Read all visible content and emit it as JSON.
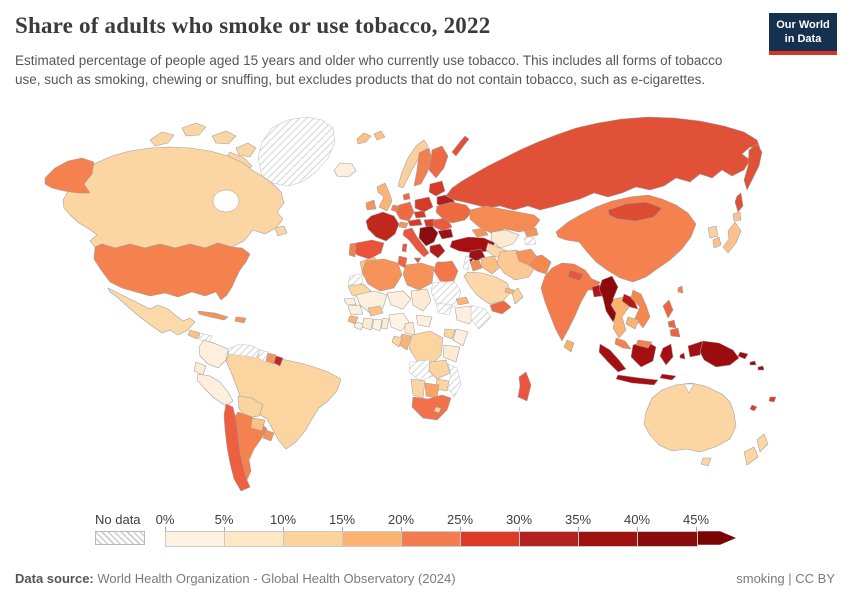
{
  "header": {
    "title": "Share of adults who smoke or use tobacco, 2022",
    "subtitle": "Estimated percentage of people aged 15 years and older who currently use tobacco. This includes all forms of tobacco use, such as smoking, chewing or snuffing, but excludes products that do not contain tobacco, such as e-cigarettes.",
    "logo": {
      "line1": "Our World",
      "line2": "in Data",
      "bg_color": "#16304f",
      "accent_color": "#d63429"
    }
  },
  "legend": {
    "no_data_label": "No data",
    "ticks": [
      "0%",
      "5%",
      "10%",
      "15%",
      "20%",
      "25%",
      "30%",
      "35%",
      "40%",
      "45%"
    ],
    "segment_colors": [
      "#fdf1e1",
      "#fde7c4",
      "#fbd49d",
      "#fcb371",
      "#f47d50",
      "#dc3b27",
      "#b42121",
      "#9e1212",
      "#8a0d0d"
    ],
    "arrow_color": "#7a0404"
  },
  "footer": {
    "source_label": "Data source:",
    "source_text": "World Health Organization - Global Health Observatory (2024)",
    "right_text": "smoking | CC BY"
  },
  "chart_data": {
    "type": "heatmap",
    "subtype": "world-choropleth",
    "title": "Share of adults who smoke or use tobacco, 2022",
    "unit": "% of people aged 15+ using tobacco",
    "scale_ticks_percent": [
      0,
      5,
      10,
      15,
      20,
      25,
      30,
      35,
      40,
      45
    ],
    "legend_note": "arrow segment = 45%+, hatched = No data",
    "regions": {
      "greenland": {
        "v": "No data",
        "c": "no-data"
      },
      "canada": {
        "v": "10-15%",
        "c": "#fbd6a3"
      },
      "usa": {
        "v": "20-25%",
        "c": "#f5814f"
      },
      "mexico": {
        "v": "10-15%",
        "c": "#fcd9a8"
      },
      "guatemala": {
        "v": "15-20%",
        "c": "#fcc183"
      },
      "honduras": {
        "v": "No data",
        "c": "no-data"
      },
      "nicaragua": {
        "v": "10-15%",
        "c": "#fbd09a"
      },
      "costa-rica-panama": {
        "v": "5-10%",
        "c": "#fdeedd"
      },
      "cuba": {
        "v": "20-25%",
        "c": "#f5935f"
      },
      "hispaniola": {
        "v": "20-25%",
        "c": "#f5935f"
      },
      "colombia": {
        "v": "5-10%",
        "c": "#fdeedd"
      },
      "venezuela": {
        "v": "No data",
        "c": "no-data"
      },
      "guyana": {
        "v": "No data",
        "c": "no-data"
      },
      "suriname": {
        "v": "20-25%",
        "c": "#f5935f"
      },
      "french-guiana": {
        "v": "30-35%",
        "c": "#c0281e"
      },
      "ecuador": {
        "v": "5-10%",
        "c": "#fdead2"
      },
      "peru": {
        "v": "5-10%",
        "c": "#fdeedd"
      },
      "brazil": {
        "v": "10-15%",
        "c": "#fbd49f"
      },
      "bolivia": {
        "v": "10-15%",
        "c": "#fbd49f"
      },
      "paraguay": {
        "v": "15-20%",
        "c": "#fcc183"
      },
      "chile": {
        "v": "25-30%",
        "c": "#ed5f41"
      },
      "argentina": {
        "v": "20-25%",
        "c": "#f5814f"
      },
      "uruguay": {
        "v": "20-25%",
        "c": "#f5935f"
      },
      "iceland": {
        "v": "5-10%",
        "c": "#fdeedd"
      },
      "ireland": {
        "v": "20-25%",
        "c": "#f5935f"
      },
      "uk": {
        "v": "15-20%",
        "c": "#fcb377"
      },
      "norway": {
        "v": "10-15%",
        "c": "#fbd0a0"
      },
      "sweden": {
        "v": "20-25%",
        "c": "#f08050"
      },
      "finland": {
        "v": "25-30%",
        "c": "#ee6a45"
      },
      "denmark": {
        "v": "25-30%",
        "c": "#ee6a45"
      },
      "baltics": {
        "v": "30-35%",
        "c": "#d63a29"
      },
      "belarus": {
        "v": "30-35%",
        "c": "#b01f1f"
      },
      "poland": {
        "v": "30-35%",
        "c": "#d63a29"
      },
      "germany": {
        "v": "25-30%",
        "c": "#ed6a45"
      },
      "benelux": {
        "v": "20-25%",
        "c": "#f08050"
      },
      "france": {
        "v": "30-35%",
        "c": "#c0281e"
      },
      "spain": {
        "v": "25-30%",
        "c": "#e8533a"
      },
      "portugal": {
        "v": "20-25%",
        "c": "#f08050"
      },
      "switzerland": {
        "v": "20-25%",
        "c": "#f5935f"
      },
      "czechia-slovakia": {
        "v": "30-35%",
        "c": "#d63a29"
      },
      "austria": {
        "v": "30-35%",
        "c": "#d63a29"
      },
      "hungary": {
        "v": "30-35%",
        "c": "#d63a29"
      },
      "italy": {
        "v": "25-30%",
        "c": "#e8563d"
      },
      "balkans": {
        "v": "40-45%",
        "c": "#8a0d10"
      },
      "greece": {
        "v": "30-35%",
        "c": "#b01b1b"
      },
      "romania": {
        "v": "25-30%",
        "c": "#ea5c41"
      },
      "bulgaria": {
        "v": "35-40%",
        "c": "#a01015"
      },
      "ukraine": {
        "v": "25-30%",
        "c": "#ed6a41"
      },
      "turkey": {
        "v": "35-40%",
        "c": "#a80f12"
      },
      "cyprus": {
        "v": "35-40%",
        "c": "#a80f12"
      },
      "svalbard": {
        "v": "15-20%",
        "c": "#fcc183"
      },
      "russia": {
        "v": "25-30%",
        "c": "#e15138"
      },
      "kazakhstan": {
        "v": "20-25%",
        "c": "#f58a52"
      },
      "uzbekistan": {
        "v": "5-10%",
        "c": "#fdead2"
      },
      "turkmenistan": {
        "v": "10-15%",
        "c": "#fcd7a9"
      },
      "kyrgyzstan": {
        "v": "20-25%",
        "c": "#f5935a"
      },
      "tajikistan": {
        "v": "No data",
        "c": "no-data"
      },
      "caucasus": {
        "v": "20-25%",
        "c": "#f5935a"
      },
      "syria": {
        "v": "35-40%",
        "c": "#9c1418"
      },
      "levant": {
        "v": "No data",
        "c": "no-data"
      },
      "jordan": {
        "v": "20-25%",
        "c": "#f08a56"
      },
      "iraq": {
        "v": "15-20%",
        "c": "#fcbd81"
      },
      "iran": {
        "v": "15-20%",
        "c": "#fcc994"
      },
      "saudi-arabia": {
        "v": "10-15%",
        "c": "#fcd7a9"
      },
      "yemen": {
        "v": "25-30%",
        "c": "#ee6a44"
      },
      "oman": {
        "v": "10-15%",
        "c": "#fbd3a1"
      },
      "uae": {
        "v": "15-20%",
        "c": "#fcb377"
      },
      "morocco": {
        "v": "15-20%",
        "c": "#fcc183"
      },
      "western-sahara": {
        "v": "No data",
        "c": "no-data"
      },
      "algeria": {
        "v": "20-25%",
        "c": "#f5935a"
      },
      "tunisia": {
        "v": "25-30%",
        "c": "#ed6441"
      },
      "libya": {
        "v": "20-25%",
        "c": "#f5935a"
      },
      "egypt": {
        "v": "20-25%",
        "c": "#f4764a"
      },
      "mauritania": {
        "v": "10-15%",
        "c": "#fbd6a3"
      },
      "mali": {
        "v": "5-10%",
        "c": "#fdeedd"
      },
      "niger": {
        "v": "5-10%",
        "c": "#fdeedd"
      },
      "chad": {
        "v": "5-10%",
        "c": "#fdead2"
      },
      "sudan": {
        "v": "No data",
        "c": "no-data"
      },
      "south-sudan": {
        "v": "No data",
        "c": "no-data"
      },
      "eritrea": {
        "v": "15-20%",
        "c": "#fcb377"
      },
      "ethiopia": {
        "v": "5-10%",
        "c": "#fdeedd"
      },
      "somalia": {
        "v": "No data",
        "c": "no-data"
      },
      "senegal": {
        "v": "5-10%",
        "c": "#fdeedd"
      },
      "guinea": {
        "v": "5-10%",
        "c": "#fdeedd"
      },
      "sierra-leone": {
        "v": "15-20%",
        "c": "#fcb377"
      },
      "liberia": {
        "v": "5-10%",
        "c": "#fdeedd"
      },
      "ivory-coast": {
        "v": "5-10%",
        "c": "#fdead2"
      },
      "ghana": {
        "v": "0-5%",
        "c": "#fdf2e6"
      },
      "togo-benin": {
        "v": "5-10%",
        "c": "#fdead2"
      },
      "burkina-faso": {
        "v": "15-20%",
        "c": "#fcc183"
      },
      "nigeria": {
        "v": "0-5%",
        "c": "#fdf2e6"
      },
      "cameroon": {
        "v": "5-10%",
        "c": "#fdead2"
      },
      "central-african-republic": {
        "v": "5-10%",
        "c": "#fdeedd"
      },
      "drc": {
        "v": "10-15%",
        "c": "#fbd49f"
      },
      "congo": {
        "v": "15-20%",
        "c": "#f9b377"
      },
      "gabon": {
        "v": "10-15%",
        "c": "#fbd49f"
      },
      "uganda": {
        "v": "10-15%",
        "c": "#fbd49f"
      },
      "kenya": {
        "v": "5-10%",
        "c": "#fdeedd"
      },
      "tanzania": {
        "v": "5-10%",
        "c": "#fdead2"
      },
      "angola": {
        "v": "No data",
        "c": "no-data"
      },
      "zambia": {
        "v": "10-15%",
        "c": "#fbd49f"
      },
      "mozambique": {
        "v": "No data",
        "c": "no-data"
      },
      "zimbabwe": {
        "v": "10-15%",
        "c": "#fbd49f"
      },
      "botswana": {
        "v": "15-20%",
        "c": "#f9a366"
      },
      "namibia": {
        "v": "10-15%",
        "c": "#fbd6a3"
      },
      "south-africa": {
        "v": "20-25%",
        "c": "#f2704a"
      },
      "lesotho": {
        "v": "10-15%",
        "c": "#fbd49f"
      },
      "madagascar": {
        "v": "25-30%",
        "c": "#ea5540"
      },
      "china": {
        "v": "20-25%",
        "c": "#f5814f"
      },
      "mongolia": {
        "v": "25-30%",
        "c": "#dd4b33"
      },
      "taiwan": {
        "v": "20-25%",
        "c": "#f5814f"
      },
      "japan": {
        "v": "15-20%",
        "c": "#fcc18c"
      },
      "south-korea": {
        "v": "15-20%",
        "c": "#fcc18c"
      },
      "north-korea": {
        "v": "10-15%",
        "c": "#fbd0a0"
      },
      "india": {
        "v": "20-25%",
        "c": "#f47b4c"
      },
      "pakistan": {
        "v": "20-25%",
        "c": "#f5884f"
      },
      "afghanistan": {
        "v": "20-25%",
        "c": "#f5935a"
      },
      "nepal": {
        "v": "25-30%",
        "c": "#e4573a"
      },
      "bangladesh": {
        "v": "35-40%",
        "c": "#ae1418"
      },
      "myanmar": {
        "v": "40-45%",
        "c": "#8f0a0d"
      },
      "thailand": {
        "v": "15-20%",
        "c": "#fcb371"
      },
      "laos": {
        "v": "35-40%",
        "c": "#b81a1a"
      },
      "vietnam": {
        "v": "20-25%",
        "c": "#f5884f"
      },
      "cambodia": {
        "v": "15-20%",
        "c": "#fcb371"
      },
      "malaysia": {
        "v": "20-25%",
        "c": "#f5814f"
      },
      "sri-lanka": {
        "v": "15-20%",
        "c": "#fcae6e"
      },
      "indonesia": {
        "v": "35-40%",
        "c": "#a60f12"
      },
      "philippines": {
        "v": "25-30%",
        "c": "#ed6441"
      },
      "papua-new-guinea": {
        "v": "40-45%",
        "c": "#9c0c0c"
      },
      "solomon-islands": {
        "v": "40-45%",
        "c": "#9c0c0c"
      },
      "vanuatu": {
        "v": "25-30%",
        "c": "#dc3b27"
      },
      "fiji": {
        "v": "25-30%",
        "c": "#dc3b27"
      },
      "australia": {
        "v": "10-15%",
        "c": "#fbd6a3"
      },
      "new-zealand": {
        "v": "10-15%",
        "c": "#fbd6a3"
      }
    }
  }
}
